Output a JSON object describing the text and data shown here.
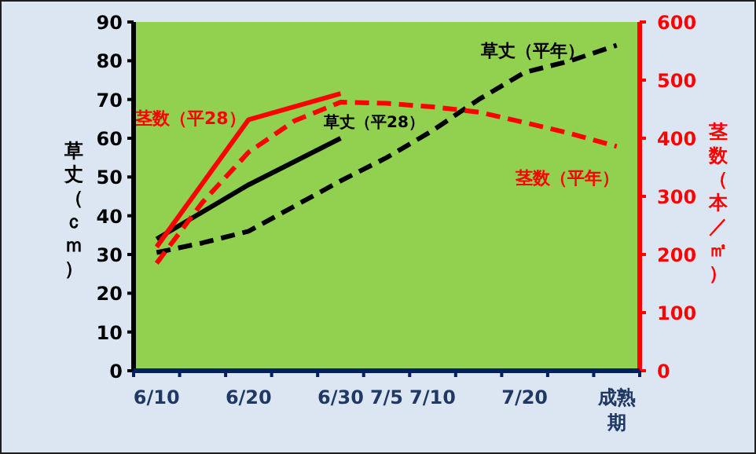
{
  "chart_data": {
    "type": "line",
    "ylabel": "草丈（ｃｍ）",
    "y2label": "茎数（本／㎡）",
    "categories": [
      "6/10",
      null,
      "6/20",
      null,
      "6/30",
      "7/5",
      "7/10",
      null,
      "7/20",
      null,
      "成熟期"
    ],
    "ylim": [
      0,
      90
    ],
    "yticks": [
      0,
      10,
      20,
      30,
      40,
      50,
      60,
      70,
      80,
      90
    ],
    "y2lim": [
      0,
      600
    ],
    "y2ticks": [
      0,
      100,
      200,
      300,
      400,
      500,
      600
    ],
    "grid": false,
    "legend": false,
    "marker": "none",
    "series": [
      {
        "name": "草丈（平28）",
        "color": "#000000",
        "line_style": "solid",
        "values": [
          34,
          null,
          48,
          null,
          60,
          null,
          null,
          null,
          null,
          null,
          null
        ]
      },
      {
        "name": "草丈（平年）",
        "color": "#000000",
        "line_style": "dashed",
        "values": [
          30.5,
          33,
          36,
          42.5,
          49,
          55,
          62,
          70,
          77,
          80,
          84
        ]
      },
      {
        "name": "茎数（平28）",
        "color": "#ff0000",
        "line_style": "solid",
        "axis": "y2",
        "values": [
          213,
          null,
          432,
          null,
          477,
          null,
          null,
          null,
          null,
          null,
          null
        ]
      },
      {
        "name": "茎数（平年）",
        "color": "#ff0000",
        "line_style": "dashed",
        "axis": "y2",
        "values": [
          185,
          290,
          376,
          430,
          462,
          460,
          454,
          445,
          427,
          408,
          386
        ]
      }
    ]
  }
}
